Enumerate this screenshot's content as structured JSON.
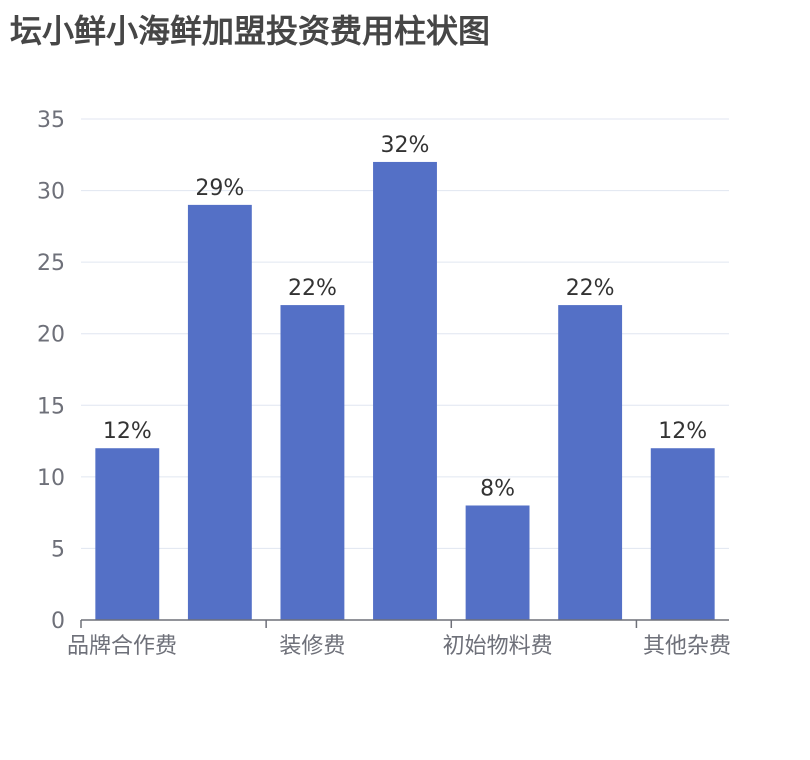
{
  "colors": {
    "bar": "#5470c6",
    "grid": "#e0e6f1",
    "axis": "#6e7079",
    "title": "#464646",
    "label": "#333333"
  },
  "chart_data": {
    "type": "bar",
    "title": "坛小鲜小海鲜加盟投资费用柱状图",
    "xlabel": "",
    "ylabel": "",
    "categories": [
      "品牌合作费",
      "",
      "装修费",
      "",
      "初始物料费",
      "",
      "其他杂费"
    ],
    "values": [
      12,
      29,
      22,
      32,
      8,
      22,
      12
    ],
    "data_labels": [
      "12%",
      "29%",
      "22%",
      "32%",
      "8%",
      "22%",
      "12%"
    ],
    "yticks": [
      0,
      5,
      10,
      15,
      20,
      25,
      30,
      35
    ],
    "ylim": [
      0,
      35
    ],
    "grid": true,
    "legend": "none"
  }
}
